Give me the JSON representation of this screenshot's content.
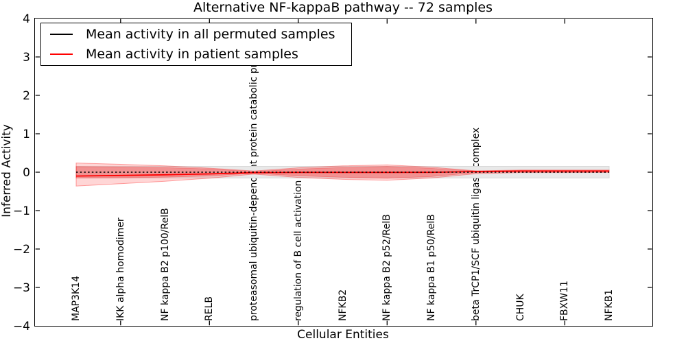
{
  "figure": {
    "title": "Alternative NF-kappaB pathway -- 72 samples"
  },
  "chart_data": {
    "type": "line",
    "title": "Alternative NF-kappaB pathway -- 72 samples",
    "xlabel": "Cellular Entities",
    "ylabel": "Inferred Activity",
    "ylim": [
      -4,
      4
    ],
    "yticks": [
      4,
      3,
      2,
      1,
      0,
      -1,
      -2,
      -3,
      -4
    ],
    "ytick_labels": [
      "4",
      "3",
      "2",
      "1",
      "0",
      "−1",
      "−2",
      "−3",
      "−4"
    ],
    "grid": false,
    "legend_position": "upper left",
    "background": "#ffffff",
    "categories": [
      "MAP3K14",
      "IKK alpha homodimer",
      "NF kappa B2 p100/RelB",
      "RELB",
      "proteasomal ubiquitin-dependent protein catabolic pr",
      "regulation of B cell activation",
      "NFKB2",
      "NF kappa B2 p52/RelB",
      "NF kappa B1 p50/RelB",
      "beta TrCP1/SCF ubiquitin ligase complex",
      "CHUK",
      "FBXW11",
      "NFKB1"
    ],
    "series": [
      {
        "name": "Mean activity in all permuted samples",
        "color": "#000000",
        "line_style": "dotted",
        "values": [
          0,
          0,
          0,
          0,
          0,
          0,
          0,
          0,
          0,
          0,
          0,
          0,
          0
        ]
      },
      {
        "name": "Mean activity in patient samples",
        "color": "#ff0000",
        "line_style": "solid",
        "values": [
          -0.1,
          -0.085,
          -0.067,
          -0.045,
          -0.012,
          -0.006,
          -0.005,
          -0.005,
          -0.004,
          0.018,
          0.028,
          0.028,
          0.028
        ]
      }
    ],
    "bands": [
      {
        "name": "permuted samples activity band",
        "fill": "#e9e9e9",
        "edge": "#d8d8d8",
        "upper": [
          0.152,
          0.152,
          0.152,
          0.152,
          0.152,
          0.152,
          0.152,
          0.152,
          0.152,
          0.152,
          0.152,
          0.152,
          0.152
        ],
        "lower": [
          -0.152,
          -0.152,
          -0.152,
          -0.152,
          -0.152,
          -0.152,
          -0.152,
          -0.152,
          -0.152,
          -0.152,
          -0.152,
          -0.152,
          -0.152
        ]
      },
      {
        "name": "patient samples outer band",
        "fill": "rgba(255,0,0,0.16)",
        "edge": "rgba(255,0,0,0.35)",
        "upper": [
          0.24,
          0.205,
          0.165,
          0.105,
          0.03,
          0.115,
          0.165,
          0.19,
          0.13,
          0.035,
          0.055,
          0.055,
          0.055
        ],
        "lower": [
          -0.36,
          -0.3,
          -0.235,
          -0.155,
          -0.05,
          -0.135,
          -0.185,
          -0.21,
          -0.15,
          -0.04,
          -0.01,
          -0.01,
          -0.008
        ]
      },
      {
        "name": "patient samples inner band",
        "fill": "rgba(255,0,0,0.25)",
        "edge": "rgba(255,0,0,0.30)",
        "upper": [
          0.145,
          0.135,
          0.118,
          0.085,
          0.015,
          0.082,
          0.122,
          0.148,
          0.1,
          0.026,
          0.042,
          0.042,
          0.042
        ],
        "lower": [
          -0.15,
          -0.145,
          -0.128,
          -0.098,
          -0.028,
          -0.092,
          -0.132,
          -0.158,
          -0.112,
          -0.012,
          0.012,
          0.012,
          0.012
        ]
      }
    ]
  }
}
